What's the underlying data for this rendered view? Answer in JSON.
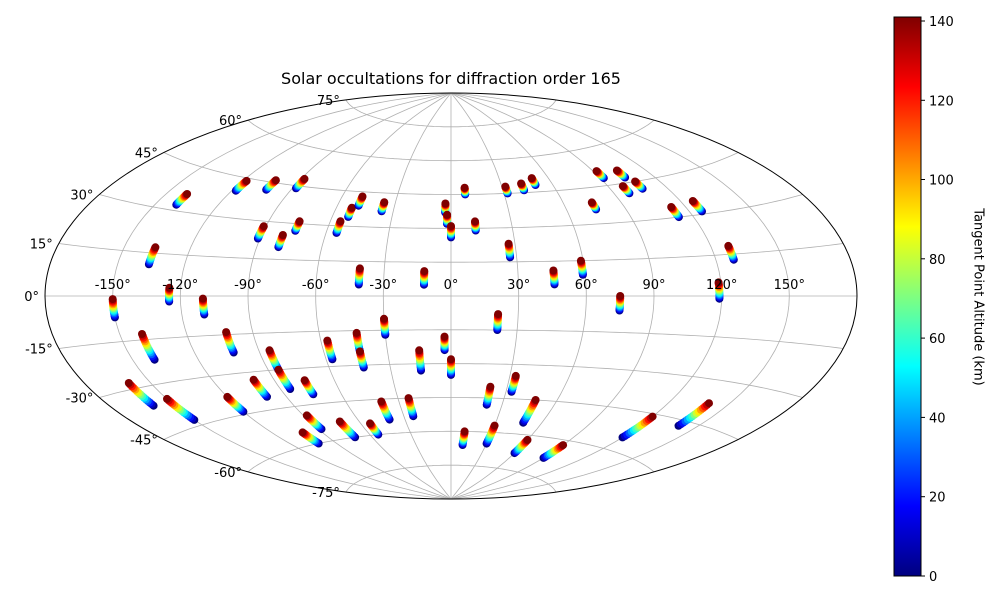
{
  "chart_data": {
    "type": "scatter",
    "title": "Solar occultations for diffraction order 165",
    "projection": "aitoff",
    "longitude_ticks": [
      "-150°",
      "-120°",
      "-90°",
      "-60°",
      "-30°",
      "0°",
      "30°",
      "60°",
      "90°",
      "120°",
      "150°"
    ],
    "longitude_tick_values": [
      -150,
      -120,
      -90,
      -60,
      -30,
      0,
      30,
      60,
      90,
      120,
      150
    ],
    "latitude_ticks": [
      "75°",
      "60°",
      "45°",
      "30°",
      "15°",
      "0°",
      "-15°",
      "-30°",
      "-45°",
      "-60°",
      "-75°"
    ],
    "latitude_tick_values": [
      75,
      60,
      45,
      30,
      15,
      0,
      -15,
      -30,
      -45,
      -60,
      -75
    ],
    "grid": true,
    "colormap": "jet",
    "colorbar": {
      "label": "Tangent Point Altitude (km)",
      "range": [
        0,
        141
      ],
      "ticks": [
        "0",
        "20",
        "40",
        "60",
        "80",
        "100",
        "120",
        "140"
      ],
      "tick_values": [
        0,
        20,
        40,
        60,
        80,
        100,
        120,
        140
      ]
    },
    "tracks": [
      {
        "lon_deg": -140,
        "lat_deg": [
          32,
          36
        ]
      },
      {
        "lon_deg": -118,
        "lat_deg": [
          40,
          44
        ]
      },
      {
        "lon_deg": -103,
        "lat_deg": [
          42,
          46
        ]
      },
      {
        "lon_deg": -88,
        "lat_deg": [
          44,
          48
        ]
      },
      {
        "lon_deg": -91,
        "lat_deg": [
          23,
          28
        ]
      },
      {
        "lon_deg": -80,
        "lat_deg": [
          20,
          25
        ]
      },
      {
        "lon_deg": -75,
        "lat_deg": [
          27,
          31
        ]
      },
      {
        "lon_deg": -55,
        "lat_deg": [
          27,
          32
        ]
      },
      {
        "lon_deg": -52,
        "lat_deg": [
          34,
          38
        ]
      },
      {
        "lon_deg": -49,
        "lat_deg": [
          39,
          43
        ]
      },
      {
        "lon_deg": -36,
        "lat_deg": [
          37,
          41
        ]
      },
      {
        "lon_deg": -136,
        "lat_deg": [
          11,
          17
        ]
      },
      {
        "lon_deg": -41,
        "lat_deg": [
          5,
          12
        ]
      },
      {
        "lon_deg": -12,
        "lat_deg": [
          5,
          11
        ]
      },
      {
        "lon_deg": -3,
        "lat_deg": [
          37,
          41
        ]
      },
      {
        "lon_deg": -2,
        "lat_deg": [
          32,
          36
        ]
      },
      {
        "lon_deg": 0,
        "lat_deg": [
          26,
          31
        ]
      },
      {
        "lon_deg": 8,
        "lat_deg": [
          45,
          48
        ]
      },
      {
        "lon_deg": 12,
        "lat_deg": [
          29,
          33
        ]
      },
      {
        "lon_deg": 27,
        "lat_deg": [
          17,
          23
        ]
      },
      {
        "lon_deg": 32,
        "lat_deg": [
          45,
          48
        ]
      },
      {
        "lon_deg": 42,
        "lat_deg": [
          46,
          49
        ]
      },
      {
        "lon_deg": 50,
        "lat_deg": [
          48,
          51
        ]
      },
      {
        "lon_deg": 46,
        "lat_deg": [
          5,
          11
        ]
      },
      {
        "lon_deg": 59,
        "lat_deg": [
          9,
          15
        ]
      },
      {
        "lon_deg": 75,
        "lat_deg": [
          36,
          39
        ]
      },
      {
        "lon_deg": 92,
        "lat_deg": [
          48,
          51
        ]
      },
      {
        "lon_deg": 104,
        "lat_deg": [
          47,
          50
        ]
      },
      {
        "lon_deg": 98,
        "lat_deg": [
          41,
          44
        ]
      },
      {
        "lon_deg": 107,
        "lat_deg": [
          42,
          45
        ]
      },
      {
        "lon_deg": 113,
        "lat_deg": [
          30,
          34
        ]
      },
      {
        "lon_deg": 126,
        "lat_deg": [
          31,
          35
        ]
      },
      {
        "lon_deg": 128,
        "lat_deg": [
          13,
          18
        ]
      },
      {
        "lon_deg": 75,
        "lat_deg": [
          -6,
          0
        ]
      },
      {
        "lon_deg": 119,
        "lat_deg": [
          -1,
          5
        ]
      },
      {
        "lon_deg": -150,
        "lat_deg": [
          -7,
          -1
        ]
      },
      {
        "lon_deg": -125,
        "lat_deg": [
          -2,
          3
        ]
      },
      {
        "lon_deg": -110,
        "lat_deg": [
          -7,
          -1
        ]
      },
      {
        "lon_deg": -140,
        "lat_deg": [
          -22,
          -13
        ]
      },
      {
        "lon_deg": -102,
        "lat_deg": [
          -22,
          -14
        ]
      },
      {
        "lon_deg": -57,
        "lat_deg": [
          -27,
          -19
        ]
      },
      {
        "lon_deg": -43,
        "lat_deg": [
          -24,
          -16
        ]
      },
      {
        "lon_deg": -30,
        "lat_deg": [
          -17,
          -10
        ]
      },
      {
        "lon_deg": -3,
        "lat_deg": [
          -24,
          -18
        ]
      },
      {
        "lon_deg": 21,
        "lat_deg": [
          -15,
          -8
        ]
      },
      {
        "lon_deg": -160,
        "lat_deg": [
          -36,
          -28
        ]
      },
      {
        "lon_deg": -150,
        "lat_deg": [
          -43,
          -35
        ]
      },
      {
        "lon_deg": -85,
        "lat_deg": [
          -30,
          -22
        ]
      },
      {
        "lon_deg": -85,
        "lat_deg": [
          -38,
          -30
        ]
      },
      {
        "lon_deg": -100,
        "lat_deg": [
          -40,
          -33
        ]
      },
      {
        "lon_deg": -75,
        "lat_deg": [
          -41,
          -35
        ]
      },
      {
        "lon_deg": -43,
        "lat_deg": [
          -31,
          -24
        ]
      },
      {
        "lon_deg": -15,
        "lat_deg": [
          -33,
          -24
        ]
      },
      {
        "lon_deg": 0,
        "lat_deg": [
          -35,
          -28
        ]
      },
      {
        "lon_deg": 21,
        "lat_deg": [
          -48,
          -40
        ]
      },
      {
        "lon_deg": 33,
        "lat_deg": [
          -42,
          -35
        ]
      },
      {
        "lon_deg": 48,
        "lat_deg": [
          -55,
          -45
        ]
      },
      {
        "lon_deg": 140,
        "lat_deg": [
          -47,
          -38
        ]
      },
      {
        "lon_deg": 120,
        "lat_deg": [
          -55,
          -46
        ]
      },
      {
        "lon_deg": -120,
        "lat_deg": [
          -44,
          -38
        ]
      },
      {
        "lon_deg": -102,
        "lat_deg": [
          -60,
          -55
        ]
      },
      {
        "lon_deg": -88,
        "lat_deg": [
          -55,
          -49
        ]
      },
      {
        "lon_deg": -72,
        "lat_deg": [
          -60,
          -53
        ]
      },
      {
        "lon_deg": -54,
        "lat_deg": [
          -60,
          -55
        ]
      },
      {
        "lon_deg": -40,
        "lat_deg": [
          -54,
          -46
        ]
      },
      {
        "lon_deg": -24,
        "lat_deg": [
          -53,
          -45
        ]
      },
      {
        "lon_deg": 10,
        "lat_deg": [
          -66,
          -60
        ]
      },
      {
        "lon_deg": 30,
        "lat_deg": [
          -65,
          -57
        ]
      },
      {
        "lon_deg": 60,
        "lat_deg": [
          -68,
          -62
        ]
      },
      {
        "lon_deg": 90,
        "lat_deg": [
          -68,
          -62
        ]
      }
    ]
  }
}
